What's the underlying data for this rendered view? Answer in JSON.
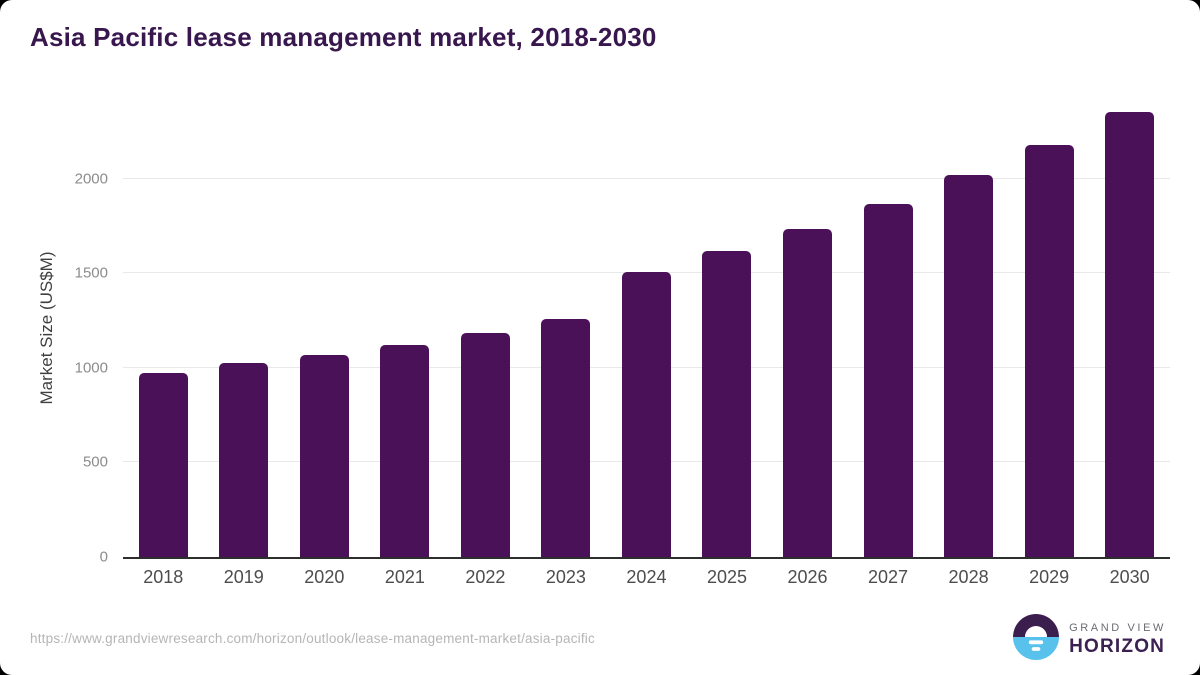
{
  "title": "Asia Pacific lease management market, 2018-2030",
  "chart_data": {
    "type": "bar",
    "title": "Asia Pacific lease management market, 2018-2030",
    "xlabel": "",
    "ylabel": "Market Size (US$M)",
    "categories": [
      "2018",
      "2019",
      "2020",
      "2021",
      "2022",
      "2023",
      "2024",
      "2025",
      "2026",
      "2027",
      "2028",
      "2029",
      "2030"
    ],
    "values": [
      970,
      1027,
      1065,
      1120,
      1186,
      1260,
      1504,
      1615,
      1734,
      1866,
      2016,
      2178,
      2354
    ],
    "yticks": [
      0,
      500,
      1000,
      1500,
      2000
    ],
    "ylim": [
      0,
      2420
    ],
    "grid": true,
    "legend": "none",
    "bar_color": "#4a1158"
  },
  "footer": {
    "source_url": "https://www.grandviewresearch.com/horizon/outlook/lease-management-market/asia-pacific",
    "logo": {
      "line1": "GRAND VIEW",
      "line2": "HORIZON",
      "mark": "horizon-sun-circle-icon"
    }
  },
  "colors": {
    "title_text": "#38164e",
    "bar": "#4a1158",
    "gridline": "#e8e8e8",
    "axis_line": "#2e2e2e",
    "y_tick_text": "#8c8c8c",
    "x_tick_text": "#4d4d4d",
    "url_text": "#b5b5b5",
    "logo_purple": "#3b1e4e",
    "logo_blue": "#58c1ec"
  }
}
